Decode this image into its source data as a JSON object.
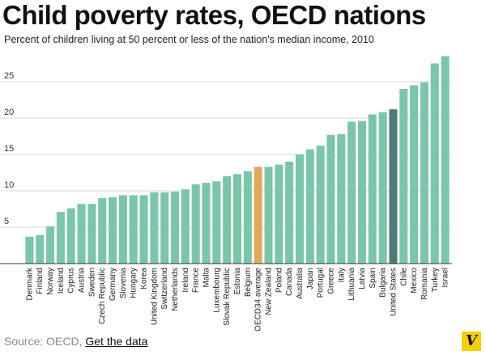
{
  "header": {
    "title": "Child poverty rates, OECD nations",
    "subtitle": "Percent of children living at 50 percent or less of the nation's median income, 2010"
  },
  "footer": {
    "source_prefix": "Source: OECD,",
    "link_text": "Get the data"
  },
  "logo": {
    "text": "V"
  },
  "colors": {
    "default_bar": "#7ac6a8",
    "average_bar": "#e0a85a",
    "us_bar": "#4f7a78",
    "grid": "#d9d9d9",
    "axis": "#333333"
  },
  "chart_data": {
    "type": "bar",
    "title": "Child poverty rates, OECD nations",
    "subtitle": "Percent of children living at 50 percent or less of the nation's median income, 2010",
    "categories": [
      "Denmark",
      "Finland",
      "Norway",
      "Iceland",
      "Cyprus",
      "Austria",
      "Sweden",
      "Czech Republic",
      "Germany",
      "Slovenia",
      "Hungary",
      "Korea",
      "United Kingdom",
      "Switzerland",
      "Netherlands",
      "Ireland",
      "France",
      "Malta",
      "Luxembourg",
      "Slovak Republic",
      "Estonia",
      "Belgium",
      "OECD34 average",
      "New Zealand",
      "Poland",
      "Canada",
      "Australia",
      "Japan",
      "Portugal",
      "Greece",
      "Italy",
      "Lithuania",
      "Latvia",
      "Spain",
      "Bulgaria",
      "United States",
      "Chile",
      "Mexico",
      "Romania",
      "Turkey",
      "Israel"
    ],
    "values": [
      3.7,
      3.9,
      5.1,
      7.1,
      7.6,
      8.2,
      8.2,
      9.0,
      9.1,
      9.4,
      9.4,
      9.4,
      9.8,
      9.8,
      9.9,
      10.2,
      10.9,
      11.1,
      11.3,
      12.0,
      12.3,
      12.7,
      13.3,
      13.3,
      13.6,
      14.0,
      15.0,
      15.7,
      16.2,
      17.7,
      17.8,
      19.5,
      19.6,
      20.5,
      20.8,
      21.2,
      24.0,
      24.5,
      24.9,
      27.5,
      28.5
    ],
    "highlights": {
      "OECD34 average": "average",
      "United States": "us"
    },
    "ylim": [
      0,
      30
    ],
    "yticks": [
      5,
      10,
      15,
      20,
      25
    ],
    "xlabel": "",
    "ylabel": "",
    "grid": true,
    "legend": "none"
  }
}
